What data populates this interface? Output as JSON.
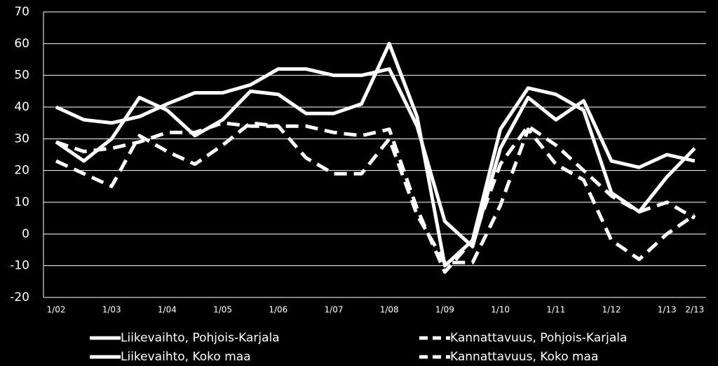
{
  "chart_data": {
    "type": "line",
    "categories": [
      "1/02",
      null,
      "1/03",
      null,
      "1/04",
      null,
      "1/05",
      null,
      "1/06",
      null,
      "1/07",
      null,
      "1/08",
      null,
      "1/09",
      null,
      "1/10",
      null,
      "1/11",
      null,
      "1/12",
      null,
      "1/13",
      "2/13"
    ],
    "series": [
      {
        "name": "Liikevaihto, Pohjois-Karjala",
        "color": "#ffffff",
        "dashed": false,
        "values": [
          29,
          23,
          30,
          43,
          39,
          31,
          36,
          45,
          44,
          38,
          38,
          41,
          60,
          37,
          -10,
          -2,
          33,
          46,
          44,
          39,
          13,
          7,
          18,
          27
        ]
      },
      {
        "name": "Kannattavuus, Pohjois-Karjala",
        "color": "#ffffff",
        "dashed": true,
        "values": [
          23,
          19,
          15,
          31,
          26,
          22,
          28,
          35,
          34,
          24,
          19,
          19,
          30,
          6,
          -9,
          -9,
          9,
          33,
          22,
          17,
          -2,
          -8,
          0,
          6
        ]
      },
      {
        "name": "Liikevaihto, Koko maa",
        "color": "#ffffff",
        "dashed": false,
        "values": [
          40,
          36,
          35,
          37,
          41,
          44.5,
          44.5,
          47,
          52,
          52,
          50,
          50,
          52,
          34,
          4,
          -4,
          27,
          43,
          36,
          42,
          23,
          21,
          25,
          23
        ]
      },
      {
        "name": "Kannattavuus, Koko maa",
        "color": "#ffffff",
        "dashed": true,
        "values": [
          29,
          26,
          27,
          29,
          32,
          32,
          35,
          34,
          34,
          34,
          32,
          31,
          33,
          8,
          -12,
          -2,
          22,
          34,
          28,
          20,
          12,
          7,
          10,
          5
        ]
      }
    ],
    "ylim": [
      -20,
      70
    ],
    "yticks": [
      -20,
      -10,
      0,
      10,
      20,
      30,
      40,
      50,
      60,
      70
    ],
    "grid": true
  }
}
